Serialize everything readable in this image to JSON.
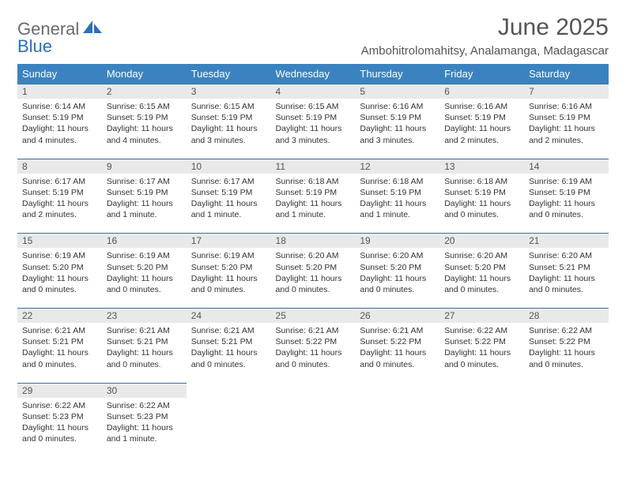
{
  "logo": {
    "text1": "General",
    "text2": "Blue",
    "text1_color": "#6b6b6b",
    "text2_color": "#2a71b8",
    "icon_color": "#2a71b8"
  },
  "title": "June 2025",
  "location": "Ambohitrolomahitsy, Analamanga, Madagascar",
  "colors": {
    "header_bg": "#3b83c0",
    "header_text": "#ffffff",
    "daynum_bg": "#e9e9e9",
    "daynum_border": "#3b6fa0",
    "body_text": "#333333"
  },
  "day_headers": [
    "Sunday",
    "Monday",
    "Tuesday",
    "Wednesday",
    "Thursday",
    "Friday",
    "Saturday"
  ],
  "weeks": [
    [
      {
        "n": "1",
        "sr": "Sunrise: 6:14 AM",
        "ss": "Sunset: 5:19 PM",
        "dl": "Daylight: 11 hours and 4 minutes."
      },
      {
        "n": "2",
        "sr": "Sunrise: 6:15 AM",
        "ss": "Sunset: 5:19 PM",
        "dl": "Daylight: 11 hours and 4 minutes."
      },
      {
        "n": "3",
        "sr": "Sunrise: 6:15 AM",
        "ss": "Sunset: 5:19 PM",
        "dl": "Daylight: 11 hours and 3 minutes."
      },
      {
        "n": "4",
        "sr": "Sunrise: 6:15 AM",
        "ss": "Sunset: 5:19 PM",
        "dl": "Daylight: 11 hours and 3 minutes."
      },
      {
        "n": "5",
        "sr": "Sunrise: 6:16 AM",
        "ss": "Sunset: 5:19 PM",
        "dl": "Daylight: 11 hours and 3 minutes."
      },
      {
        "n": "6",
        "sr": "Sunrise: 6:16 AM",
        "ss": "Sunset: 5:19 PM",
        "dl": "Daylight: 11 hours and 2 minutes."
      },
      {
        "n": "7",
        "sr": "Sunrise: 6:16 AM",
        "ss": "Sunset: 5:19 PM",
        "dl": "Daylight: 11 hours and 2 minutes."
      }
    ],
    [
      {
        "n": "8",
        "sr": "Sunrise: 6:17 AM",
        "ss": "Sunset: 5:19 PM",
        "dl": "Daylight: 11 hours and 2 minutes."
      },
      {
        "n": "9",
        "sr": "Sunrise: 6:17 AM",
        "ss": "Sunset: 5:19 PM",
        "dl": "Daylight: 11 hours and 1 minute."
      },
      {
        "n": "10",
        "sr": "Sunrise: 6:17 AM",
        "ss": "Sunset: 5:19 PM",
        "dl": "Daylight: 11 hours and 1 minute."
      },
      {
        "n": "11",
        "sr": "Sunrise: 6:18 AM",
        "ss": "Sunset: 5:19 PM",
        "dl": "Daylight: 11 hours and 1 minute."
      },
      {
        "n": "12",
        "sr": "Sunrise: 6:18 AM",
        "ss": "Sunset: 5:19 PM",
        "dl": "Daylight: 11 hours and 1 minute."
      },
      {
        "n": "13",
        "sr": "Sunrise: 6:18 AM",
        "ss": "Sunset: 5:19 PM",
        "dl": "Daylight: 11 hours and 0 minutes."
      },
      {
        "n": "14",
        "sr": "Sunrise: 6:19 AM",
        "ss": "Sunset: 5:19 PM",
        "dl": "Daylight: 11 hours and 0 minutes."
      }
    ],
    [
      {
        "n": "15",
        "sr": "Sunrise: 6:19 AM",
        "ss": "Sunset: 5:20 PM",
        "dl": "Daylight: 11 hours and 0 minutes."
      },
      {
        "n": "16",
        "sr": "Sunrise: 6:19 AM",
        "ss": "Sunset: 5:20 PM",
        "dl": "Daylight: 11 hours and 0 minutes."
      },
      {
        "n": "17",
        "sr": "Sunrise: 6:19 AM",
        "ss": "Sunset: 5:20 PM",
        "dl": "Daylight: 11 hours and 0 minutes."
      },
      {
        "n": "18",
        "sr": "Sunrise: 6:20 AM",
        "ss": "Sunset: 5:20 PM",
        "dl": "Daylight: 11 hours and 0 minutes."
      },
      {
        "n": "19",
        "sr": "Sunrise: 6:20 AM",
        "ss": "Sunset: 5:20 PM",
        "dl": "Daylight: 11 hours and 0 minutes."
      },
      {
        "n": "20",
        "sr": "Sunrise: 6:20 AM",
        "ss": "Sunset: 5:20 PM",
        "dl": "Daylight: 11 hours and 0 minutes."
      },
      {
        "n": "21",
        "sr": "Sunrise: 6:20 AM",
        "ss": "Sunset: 5:21 PM",
        "dl": "Daylight: 11 hours and 0 minutes."
      }
    ],
    [
      {
        "n": "22",
        "sr": "Sunrise: 6:21 AM",
        "ss": "Sunset: 5:21 PM",
        "dl": "Daylight: 11 hours and 0 minutes."
      },
      {
        "n": "23",
        "sr": "Sunrise: 6:21 AM",
        "ss": "Sunset: 5:21 PM",
        "dl": "Daylight: 11 hours and 0 minutes."
      },
      {
        "n": "24",
        "sr": "Sunrise: 6:21 AM",
        "ss": "Sunset: 5:21 PM",
        "dl": "Daylight: 11 hours and 0 minutes."
      },
      {
        "n": "25",
        "sr": "Sunrise: 6:21 AM",
        "ss": "Sunset: 5:22 PM",
        "dl": "Daylight: 11 hours and 0 minutes."
      },
      {
        "n": "26",
        "sr": "Sunrise: 6:21 AM",
        "ss": "Sunset: 5:22 PM",
        "dl": "Daylight: 11 hours and 0 minutes."
      },
      {
        "n": "27",
        "sr": "Sunrise: 6:22 AM",
        "ss": "Sunset: 5:22 PM",
        "dl": "Daylight: 11 hours and 0 minutes."
      },
      {
        "n": "28",
        "sr": "Sunrise: 6:22 AM",
        "ss": "Sunset: 5:22 PM",
        "dl": "Daylight: 11 hours and 0 minutes."
      }
    ],
    [
      {
        "n": "29",
        "sr": "Sunrise: 6:22 AM",
        "ss": "Sunset: 5:23 PM",
        "dl": "Daylight: 11 hours and 0 minutes."
      },
      {
        "n": "30",
        "sr": "Sunrise: 6:22 AM",
        "ss": "Sunset: 5:23 PM",
        "dl": "Daylight: 11 hours and 1 minute."
      },
      null,
      null,
      null,
      null,
      null
    ]
  ]
}
